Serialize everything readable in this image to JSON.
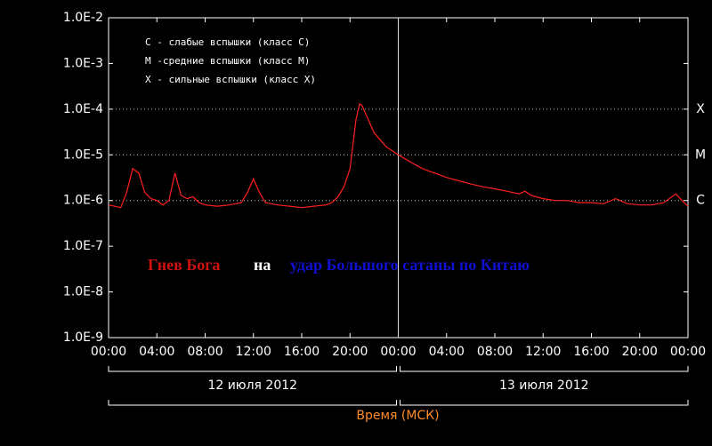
{
  "chart_data": {
    "type": "line",
    "legend_lines": [
      "C - слабые вспышки (класс C)",
      "M -средние вспышки (класс M)",
      "X - сильные вспышки (класс X)"
    ],
    "overlay": {
      "part1": "Гнев Бога",
      "part2": "на",
      "part3": "удар Большого сатаны по Китаю"
    },
    "days": [
      "12 июля 2012",
      "13 июля 2012"
    ],
    "x_label": "Время (МСК)",
    "yscale": "log",
    "xlim": [
      0,
      48
    ],
    "ylim": [
      1e-09,
      0.01
    ],
    "yticks": [
      {
        "value": 1e-09,
        "label": "1.0E-9"
      },
      {
        "value": 1e-08,
        "label": "1.0E-8"
      },
      {
        "value": 1e-07,
        "label": "1.0E-7"
      },
      {
        "value": 1e-06,
        "label": "1.0E-6"
      },
      {
        "value": 1e-05,
        "label": "1.0E-5"
      },
      {
        "value": 0.0001,
        "label": "1.0E-4"
      },
      {
        "value": 0.001,
        "label": "1.0E-3"
      },
      {
        "value": 0.01,
        "label": "1.0E-2"
      }
    ],
    "xticks": [
      {
        "value": 0,
        "label": "00:00"
      },
      {
        "value": 4,
        "label": "04:00"
      },
      {
        "value": 8,
        "label": "08:00"
      },
      {
        "value": 12,
        "label": "12:00"
      },
      {
        "value": 16,
        "label": "16:00"
      },
      {
        "value": 20,
        "label": "20:00"
      },
      {
        "value": 24,
        "label": "00:00"
      },
      {
        "value": 28,
        "label": "04:00"
      },
      {
        "value": 32,
        "label": "08:00"
      },
      {
        "value": 36,
        "label": "12:00"
      },
      {
        "value": 40,
        "label": "16:00"
      },
      {
        "value": 44,
        "label": "20:00"
      },
      {
        "value": 48,
        "label": "00:00"
      }
    ],
    "class_lines": [
      {
        "value": 0.0001,
        "label": "X"
      },
      {
        "value": 1e-05,
        "label": "M"
      },
      {
        "value": 1e-06,
        "label": "C"
      }
    ],
    "day_divider": 24,
    "x": [
      0,
      0.5,
      1,
      1.5,
      2,
      2.5,
      3,
      3.5,
      4,
      4.5,
      5,
      5.5,
      6,
      6.5,
      7,
      7.5,
      8,
      9,
      10,
      11,
      11.5,
      12,
      12.5,
      13,
      14,
      15,
      16,
      17,
      18,
      18.5,
      19,
      19.5,
      20,
      20.5,
      20.8,
      21,
      21.5,
      22,
      23,
      24,
      25,
      26,
      27,
      28,
      29,
      30,
      31,
      32,
      33,
      34,
      34.5,
      35,
      36,
      37,
      38,
      39,
      40,
      41,
      42,
      43,
      44,
      45,
      46,
      47,
      47.5,
      48
    ],
    "series": [
      {
        "color": "#ff2020",
        "values": [
          8e-07,
          7.5e-07,
          7e-07,
          1.5e-06,
          5e-06,
          4e-06,
          1.5e-06,
          1.1e-06,
          1e-06,
          8e-07,
          1e-06,
          4e-06,
          1.3e-06,
          1.1e-06,
          1.2e-06,
          9e-07,
          8e-07,
          7.5e-07,
          8e-07,
          9e-07,
          1.5e-06,
          3e-06,
          1.5e-06,
          9e-07,
          8e-07,
          7.5e-07,
          7e-07,
          7.5e-07,
          8e-07,
          9e-07,
          1.2e-06,
          2e-06,
          5e-06,
          6e-05,
          0.00013,
          0.00012,
          6e-05,
          3e-05,
          1.5e-05,
          1e-05,
          7e-06,
          5e-06,
          4e-06,
          3.2e-06,
          2.7e-06,
          2.3e-06,
          2e-06,
          1.8e-06,
          1.6e-06,
          1.4e-06,
          1.6e-06,
          1.3e-06,
          1.1e-06,
          1e-06,
          1e-06,
          9e-07,
          9e-07,
          8.5e-07,
          1.1e-06,
          8.5e-07,
          8e-07,
          8e-07,
          9e-07,
          1.4e-06,
          1e-06,
          7.5e-07
        ]
      }
    ]
  }
}
